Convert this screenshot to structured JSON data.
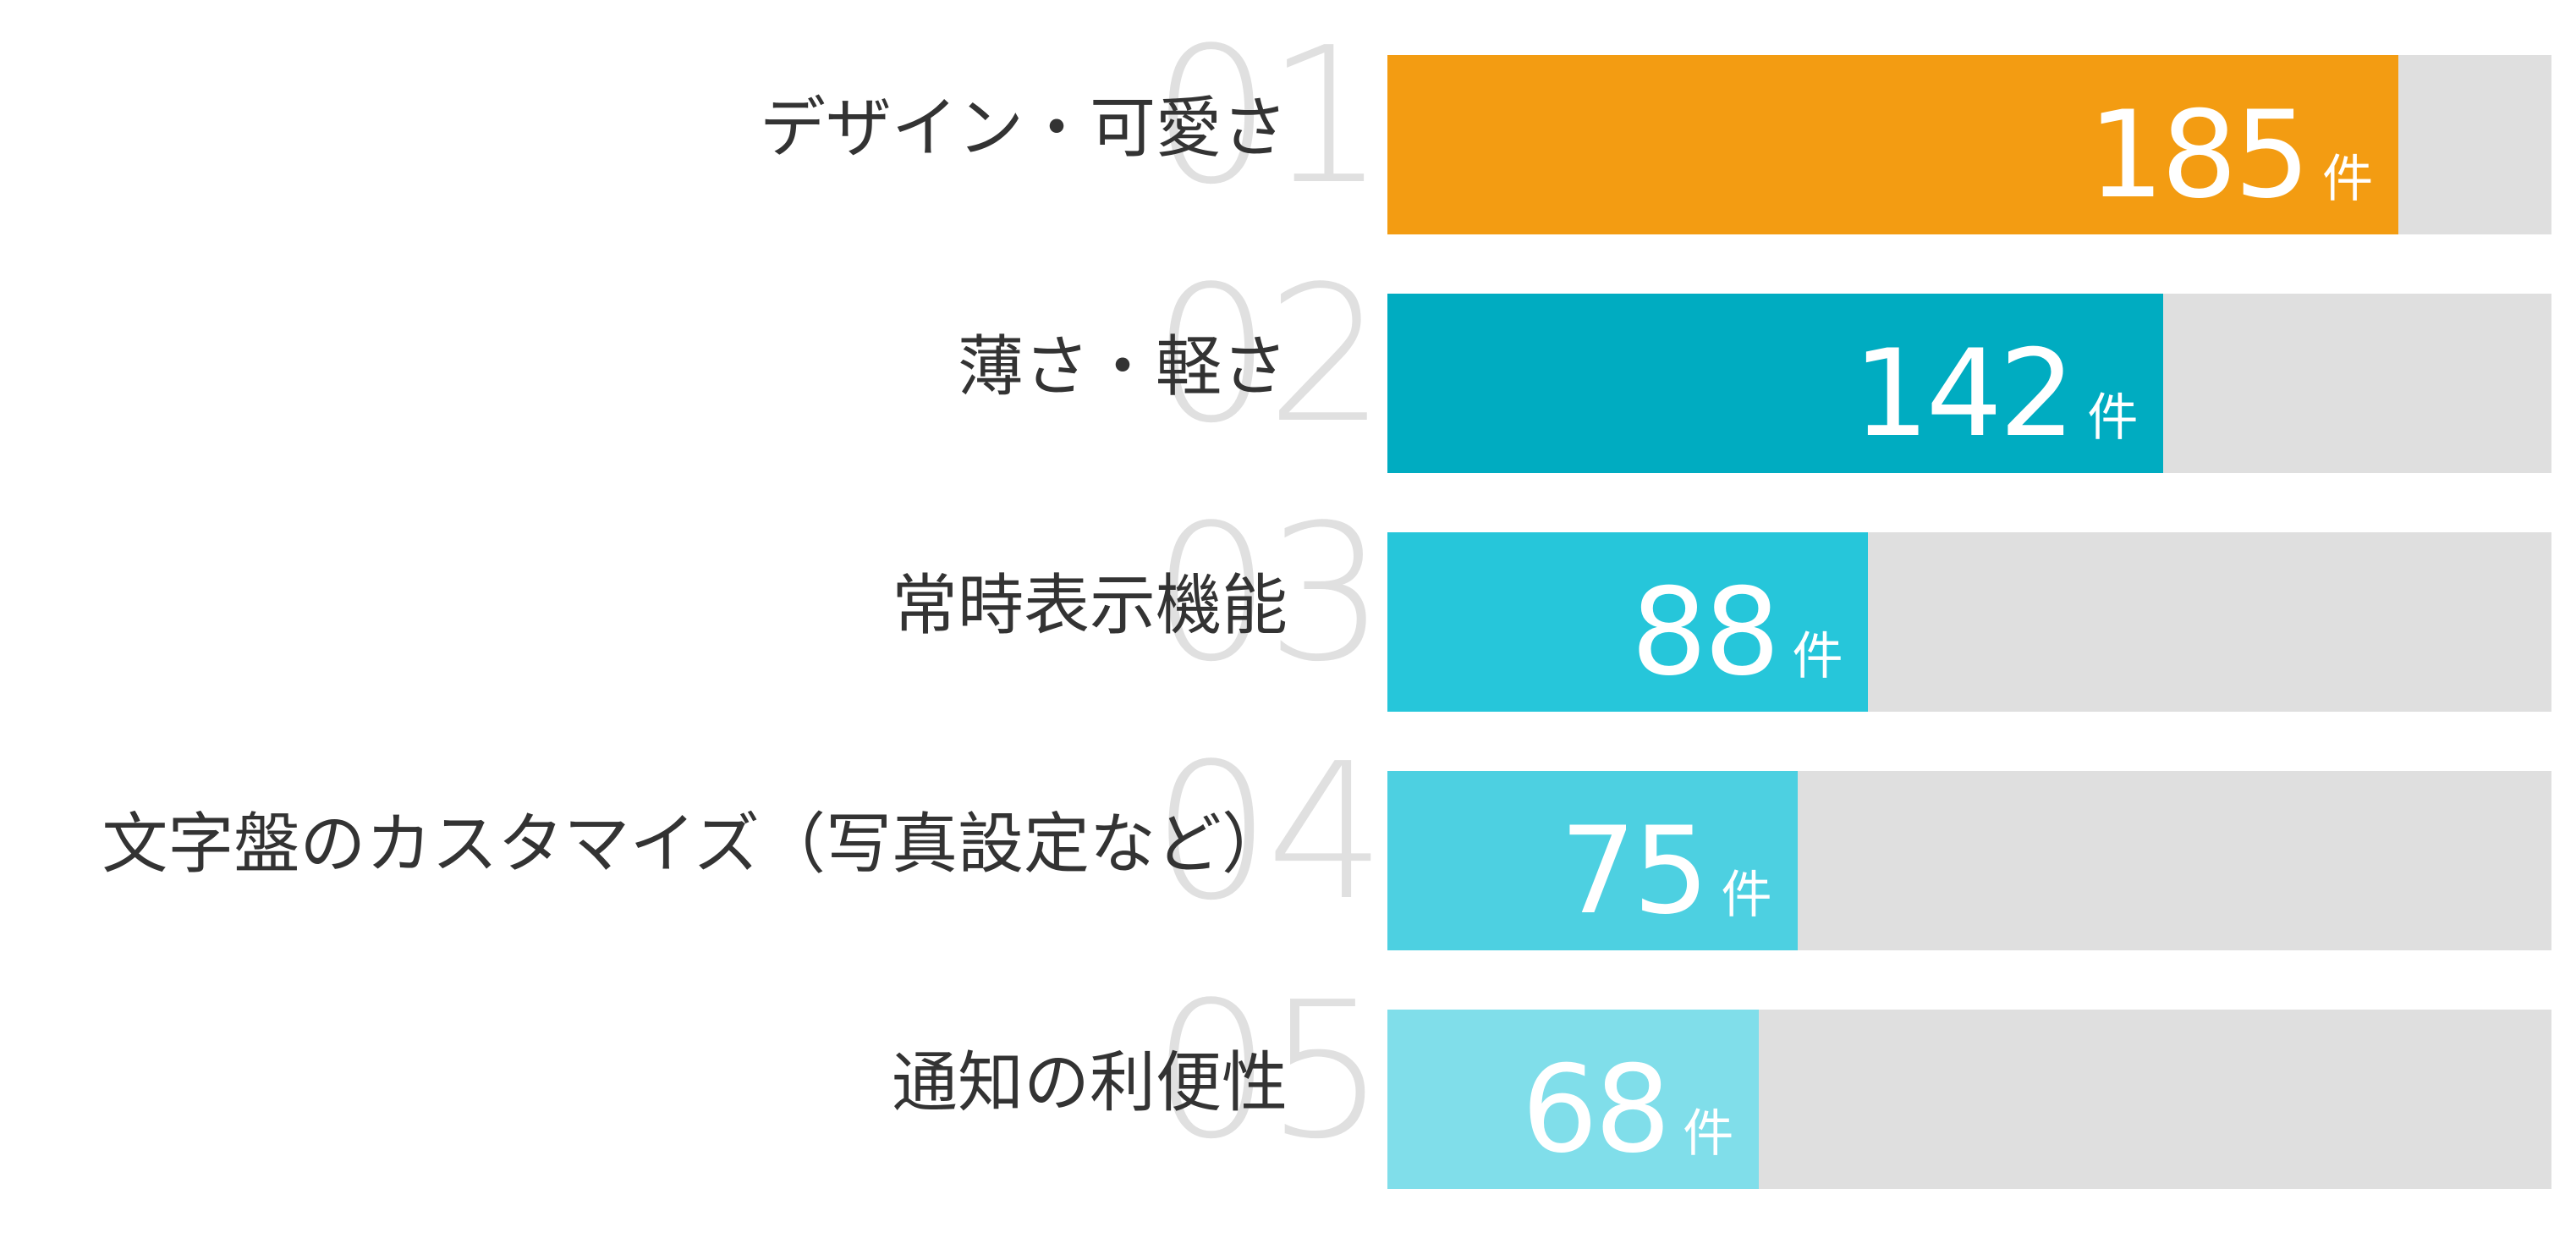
{
  "chart_data": {
    "type": "bar",
    "orientation": "horizontal",
    "title": "",
    "xlabel": "",
    "ylabel": "",
    "unit": "件",
    "xlim": [
      0,
      213
    ],
    "grid": false,
    "legend": null,
    "categories": [
      "デザイン・可愛さ",
      "薄さ・軽さ",
      "常時表示機能",
      "文字盤のカスタマイズ（写真設定など）",
      "通知の利便性"
    ],
    "ranks": [
      "01",
      "02",
      "03",
      "04",
      "05"
    ],
    "values": [
      185,
      142,
      88,
      75,
      68
    ],
    "colors": [
      "#F39C12",
      "#00ACC1",
      "#26C6DA",
      "#4DD0E1",
      "#80DEEA"
    ]
  },
  "rows": [
    {
      "rank": "01",
      "label": "デザイン・可愛さ",
      "value": "185",
      "unit": "件",
      "color": "#F39C12"
    },
    {
      "rank": "02",
      "label": "薄さ・軽さ",
      "value": "142",
      "unit": "件",
      "color": "#00ACC1"
    },
    {
      "rank": "03",
      "label": "常時表示機能",
      "value": "88",
      "unit": "件",
      "color": "#26C6DA"
    },
    {
      "rank": "04",
      "label": "文字盤のカスタマイズ（写真設定など）",
      "value": "75",
      "unit": "件",
      "color": "#4DD0E1"
    },
    {
      "rank": "05",
      "label": "通知の利便性",
      "value": "68",
      "unit": "件",
      "color": "#80DEEA"
    }
  ],
  "style": {
    "track_color": "#DFDFDF",
    "label_color": "#333333",
    "rank_color": "#E0E0E0",
    "value_color": "#FFFFFF"
  }
}
